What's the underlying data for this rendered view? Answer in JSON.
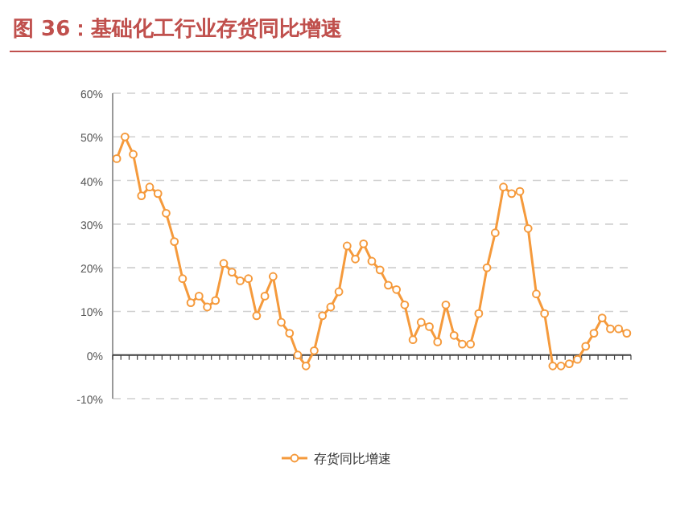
{
  "chart_data": {
    "type": "line",
    "title": "图 36：基础化工行业存货同比增速",
    "categories": [
      null,
      null,
      null,
      null,
      null,
      null,
      null,
      null,
      null,
      null,
      null,
      null,
      null,
      null,
      null,
      null,
      null,
      null,
      null,
      null,
      null,
      null,
      null,
      null,
      null,
      null,
      null,
      null,
      null,
      null,
      null,
      null,
      null,
      null,
      null,
      null,
      null,
      null,
      null,
      null,
      null,
      null,
      null,
      null,
      null,
      null,
      null,
      null,
      null,
      null,
      null,
      null,
      null,
      null,
      null,
      null,
      null,
      null,
      null,
      null,
      null,
      null,
      null
    ],
    "series": [
      {
        "name": "存货同比增速",
        "color": "#f59a3c",
        "values": [
          45,
          50,
          46,
          36.5,
          38.5,
          37,
          32.5,
          26,
          17.5,
          12,
          13.5,
          11,
          12.5,
          21,
          19,
          17,
          17.5,
          9,
          13.5,
          18,
          7.5,
          5,
          0,
          -2.5,
          1,
          9,
          11,
          14.5,
          25,
          22,
          25.5,
          21.5,
          19.5,
          16,
          15,
          11.5,
          3.5,
          7.5,
          6.5,
          3,
          11.5,
          4.5,
          2.5,
          2.5,
          9.5,
          20,
          28,
          38.5,
          37,
          37.5,
          29,
          14,
          9.5,
          -2.5,
          -2.5,
          -2,
          -1,
          2,
          5,
          8.5,
          6,
          6,
          5
        ]
      }
    ],
    "ylim": [
      -10,
      60
    ],
    "yticks": [
      {
        "value": -10,
        "label": "-10%"
      },
      {
        "value": 0,
        "label": "0%"
      },
      {
        "value": 10,
        "label": "10%"
      },
      {
        "value": 20,
        "label": "20%"
      },
      {
        "value": 30,
        "label": "30%"
      },
      {
        "value": 40,
        "label": "40%"
      },
      {
        "value": 50,
        "label": "50%"
      },
      {
        "value": 60,
        "label": "60%"
      }
    ],
    "ref_lines": [
      {
        "axis": "y",
        "value": 0,
        "color": "#404040",
        "line_style": "solid"
      }
    ],
    "grid": "y",
    "legend": "bottom",
    "marker": "circle",
    "line_style": "solid"
  }
}
